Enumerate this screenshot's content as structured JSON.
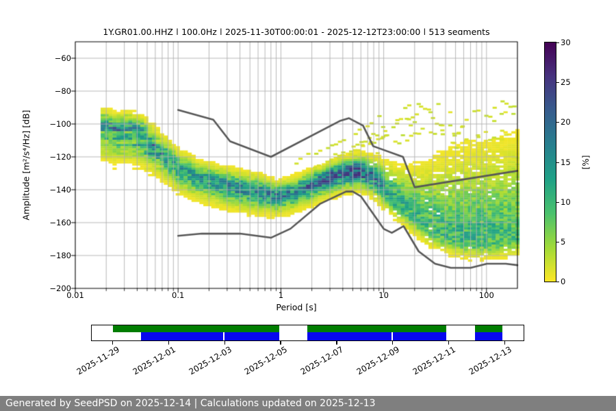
{
  "title": "1Y.GR01.00.HHZ | 100.0Hz | 2025-11-30T00:00:01 - 2025-12-12T23:00:00 | 513 segments",
  "y_axis": {
    "label": "Amplitude [m²/s⁴/Hz] [dB]",
    "ticks": [
      -60,
      -80,
      -100,
      -120,
      -140,
      -160,
      -180,
      -200
    ],
    "range": [
      -200,
      -50
    ]
  },
  "x_axis": {
    "label": "Period [s]",
    "scale": "log",
    "ticks": [
      0.01,
      0.1,
      1,
      10,
      100
    ],
    "tick_labels": [
      "0.01",
      "0.1",
      "1",
      "10",
      "100"
    ],
    "range": [
      0.01,
      200
    ]
  },
  "colorbar": {
    "label": "[%]",
    "ticks": [
      0,
      5,
      10,
      15,
      20,
      25,
      30
    ],
    "range": [
      0,
      30
    ],
    "colormap": "viridis_r",
    "viridis_stops": [
      "#440154",
      "#46327e",
      "#365c8d",
      "#277f8e",
      "#1fa187",
      "#4ac16d",
      "#a0da39",
      "#fde725"
    ]
  },
  "footer": {
    "text": "Generated by SeedPSD on 2025-12-14 | Calculations updated on 2025-12-13",
    "background": "#7f7f7f"
  },
  "timeline": {
    "date_labels": [
      "2025-11-29",
      "2025-12-01",
      "2025-12-03",
      "2025-12-05",
      "2025-12-07",
      "2025-12-09",
      "2025-12-11",
      "2025-12-13"
    ],
    "tick_days": [
      0,
      2,
      4,
      6,
      8,
      10,
      12,
      14
    ],
    "axis_day_range": [
      -0.76,
      14.72
    ],
    "green_color": "#007d00",
    "blue_color": "#0707ee",
    "green_segments_days": [
      [
        0,
        5.97
      ],
      [
        6.97,
        11.96
      ],
      [
        12.98,
        13.96
      ]
    ],
    "blue_segments_days": [
      [
        1.0,
        3.95
      ],
      [
        3.99,
        5.97
      ],
      [
        6.97,
        9.99
      ],
      [
        10.03,
        11.96
      ],
      [
        12.98,
        13.96
      ]
    ]
  },
  "chart_data": {
    "type": "heatmap",
    "title": "1Y.GR01.00.HHZ | 100.0Hz | 2025-11-30T00:00:01 - 2025-12-12T23:00:00 | 513 segments",
    "xlabel": "Period [s]",
    "ylabel": "Amplitude [m²/s⁴/Hz] [dB]",
    "x_range_s": [
      0.01,
      200
    ],
    "data_period_range_s": [
      0.0185,
      200
    ],
    "y_range_db": [
      -200,
      -50
    ],
    "color_range_percent": [
      0,
      30
    ],
    "grid": true,
    "band_backbone": [
      [
        0.019,
        -102,
        13,
        5,
        8
      ],
      [
        0.025,
        -105,
        13,
        5,
        8
      ],
      [
        0.032,
        -104,
        13,
        5,
        8
      ],
      [
        0.045,
        -107,
        14,
        5,
        8
      ],
      [
        0.065,
        -116,
        13,
        5,
        7
      ],
      [
        0.1,
        -127,
        13,
        5,
        6
      ],
      [
        0.15,
        -132,
        13,
        4.5,
        6
      ],
      [
        0.25,
        -136,
        14,
        4.5,
        6
      ],
      [
        0.4,
        -139,
        15,
        4.5,
        6
      ],
      [
        0.6,
        -141,
        15,
        4.5,
        6
      ],
      [
        0.9,
        -144,
        16,
        4,
        5
      ],
      [
        1.3,
        -142,
        16,
        4,
        5
      ],
      [
        2.0,
        -137,
        18,
        4,
        5
      ],
      [
        3.0,
        -132.5,
        20,
        4,
        5
      ],
      [
        4.5,
        -129,
        22,
        4,
        5
      ],
      [
        6.0,
        -128.5,
        22,
        4.5,
        5
      ],
      [
        8.0,
        -133,
        18,
        5.5,
        5
      ],
      [
        10,
        -139,
        14,
        7,
        5
      ],
      [
        13,
        -146,
        12,
        9,
        5
      ],
      [
        17,
        -152,
        11,
        11,
        5
      ],
      [
        22,
        -158,
        10,
        14,
        5
      ],
      [
        30,
        -164,
        10,
        18,
        5
      ],
      [
        45,
        -169,
        10,
        22,
        4.5
      ],
      [
        70,
        -171.5,
        10,
        25,
        4.5
      ],
      [
        110,
        -171.5,
        10,
        26,
        4.5
      ],
      [
        200,
        -169.5,
        9,
        27,
        4.5
      ]
    ],
    "yellow_upper_bound_db": [
      [
        6.5,
        -121
      ],
      [
        12,
        -113
      ],
      [
        20,
        -110
      ],
      [
        40,
        -111
      ],
      [
        90,
        -112
      ],
      [
        140,
        -107
      ],
      [
        200,
        -102
      ]
    ],
    "scatter_top_db": [
      [
        9,
        -100
      ],
      [
        16,
        -86
      ],
      [
        30,
        -87
      ],
      [
        60,
        -89
      ],
      [
        120,
        -87
      ],
      [
        200,
        -87
      ]
    ],
    "transient_arcs": [
      [
        [
          8,
          -122
        ],
        [
          11,
          -106
        ],
        [
          15,
          -93
        ],
        [
          20,
          -86
        ],
        [
          26,
          -90
        ],
        [
          33,
          -99
        ],
        [
          42,
          -108
        ],
        [
          55,
          -116
        ]
      ],
      [
        [
          45,
          -112
        ],
        [
          60,
          -100
        ],
        [
          80,
          -92
        ],
        [
          105,
          -96
        ],
        [
          140,
          -104
        ],
        [
          190,
          -112
        ]
      ],
      [
        [
          13,
          -112
        ],
        [
          25,
          -104
        ],
        [
          50,
          -107
        ],
        [
          100,
          -110
        ],
        [
          200,
          -107
        ]
      ],
      [
        [
          110,
          -92
        ],
        [
          150,
          -87
        ],
        [
          200,
          -90
        ]
      ]
    ],
    "diagonal_streaks": [
      [
        [
          1.3,
          -124
        ],
        [
          3,
          -114
        ],
        [
          6,
          -103
        ],
        [
          10,
          -95
        ]
      ],
      [
        [
          1.8,
          -129
        ],
        [
          4,
          -120
        ],
        [
          8,
          -111
        ],
        [
          13,
          -104
        ]
      ],
      [
        [
          2.6,
          -123
        ],
        [
          5.5,
          -114
        ],
        [
          9,
          -108
        ]
      ],
      [
        [
          3,
          -121
        ],
        [
          7,
          -109
        ],
        [
          14,
          -99
        ],
        [
          22,
          -94
        ]
      ]
    ],
    "noise_models": {
      "line_color": "#575757",
      "nhnm": [
        [
          0.1,
          -91.5
        ],
        [
          0.22,
          -97.4
        ],
        [
          0.32,
          -110.5
        ],
        [
          0.8,
          -120.0
        ],
        [
          3.8,
          -98.0
        ],
        [
          4.6,
          -96.5
        ],
        [
          6.3,
          -101.0
        ],
        [
          7.9,
          -113.5
        ],
        [
          15.4,
          -120.0
        ],
        [
          20.0,
          -138.5
        ],
        [
          200,
          -128.5
        ]
      ],
      "nlnm": [
        [
          0.1,
          -168.0
        ],
        [
          0.17,
          -166.7
        ],
        [
          0.4,
          -166.7
        ],
        [
          0.8,
          -169.2
        ],
        [
          1.24,
          -163.7
        ],
        [
          2.4,
          -148.6
        ],
        [
          4.3,
          -141.1
        ],
        [
          5.0,
          -141.1
        ],
        [
          6.0,
          -144.0
        ],
        [
          10.0,
          -163.8
        ],
        [
          12.0,
          -166.2
        ],
        [
          15.6,
          -162.1
        ],
        [
          21.9,
          -177.5
        ],
        [
          31.6,
          -185.0
        ],
        [
          45.0,
          -187.5
        ],
        [
          70.0,
          -187.5
        ],
        [
          101.0,
          -185.0
        ],
        [
          154.0,
          -185.0
        ],
        [
          200.0,
          -185.9
        ]
      ]
    },
    "grid_color": "#b0b0b0"
  }
}
